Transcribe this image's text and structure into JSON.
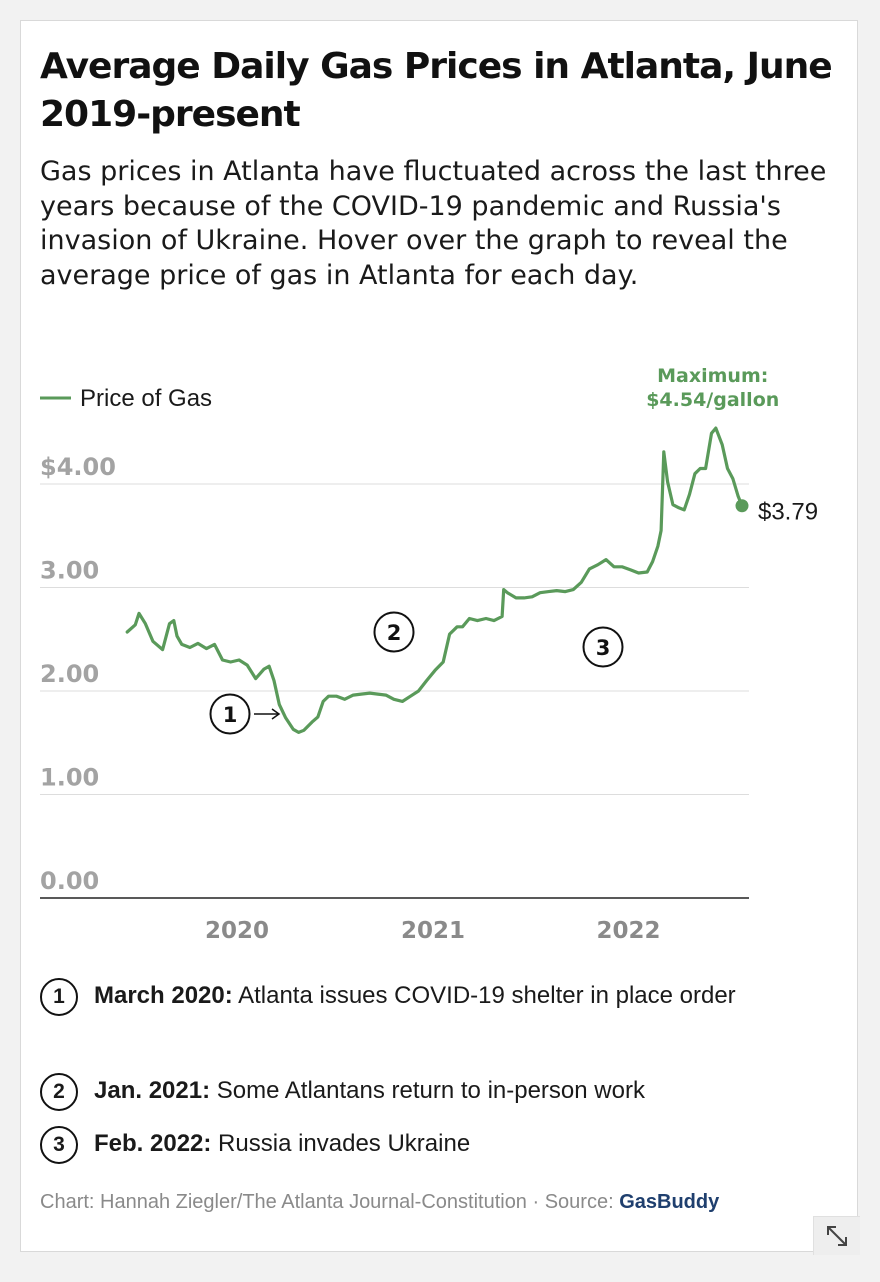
{
  "header": {
    "title": "Average Daily Gas Prices in Atlanta, June 2019-present",
    "subtitle": "Gas prices in Atlanta have fluctuated across the last three years because of the COVID-19 pandemic and Russia's invasion of Ukraine. Hover over the graph to reveal the average price of gas in Atlanta for each day."
  },
  "chart_data": {
    "type": "line",
    "legend": [
      "Price of Gas"
    ],
    "legend_placement": "top-left",
    "series": [
      {
        "name": "Price of Gas",
        "color": "#5a9a5a",
        "x": [
          "2019-06-10",
          "2019-06-25",
          "2019-07-02",
          "2019-07-14",
          "2019-07-28",
          "2019-08-15",
          "2019-08-28",
          "2019-09-05",
          "2019-09-11",
          "2019-09-20",
          "2019-10-05",
          "2019-10-20",
          "2019-11-05",
          "2019-11-20",
          "2019-12-05",
          "2019-12-20",
          "2020-01-05",
          "2020-01-20",
          "2020-02-05",
          "2020-02-20",
          "2020-03-01",
          "2020-03-10",
          "2020-03-20",
          "2020-04-01",
          "2020-04-15",
          "2020-04-25",
          "2020-05-05",
          "2020-05-20",
          "2020-05-31",
          "2020-06-10",
          "2020-06-20",
          "2020-07-05",
          "2020-07-20",
          "2020-08-05",
          "2020-08-20",
          "2020-09-05",
          "2020-09-20",
          "2020-10-05",
          "2020-10-20",
          "2020-11-05",
          "2020-11-20",
          "2020-12-05",
          "2020-12-20",
          "2021-01-05",
          "2021-01-20",
          "2021-02-01",
          "2021-02-15",
          "2021-02-25",
          "2021-03-10",
          "2021-03-25",
          "2021-04-10",
          "2021-04-25",
          "2021-05-10",
          "2021-05-13",
          "2021-05-20",
          "2021-06-05",
          "2021-06-20",
          "2021-07-05",
          "2021-07-20",
          "2021-08-05",
          "2021-08-20",
          "2021-09-05",
          "2021-09-20",
          "2021-10-05",
          "2021-10-20",
          "2021-11-05",
          "2021-11-20",
          "2021-12-05",
          "2021-12-20",
          "2022-01-05",
          "2022-01-20",
          "2022-02-05",
          "2022-02-15",
          "2022-02-25",
          "2022-03-03",
          "2022-03-08",
          "2022-03-15",
          "2022-03-25",
          "2022-04-05",
          "2022-04-15",
          "2022-04-25",
          "2022-05-05",
          "2022-05-15",
          "2022-05-25",
          "2022-06-05",
          "2022-06-13",
          "2022-06-25",
          "2022-07-05",
          "2022-07-15",
          "2022-07-25",
          "2022-08-01"
        ],
        "values": [
          2.57,
          2.64,
          2.75,
          2.65,
          2.48,
          2.4,
          2.65,
          2.68,
          2.53,
          2.45,
          2.42,
          2.46,
          2.41,
          2.45,
          2.3,
          2.28,
          2.3,
          2.25,
          2.12,
          2.21,
          2.24,
          2.1,
          1.87,
          1.74,
          1.63,
          1.6,
          1.62,
          1.7,
          1.75,
          1.9,
          1.95,
          1.95,
          1.92,
          1.96,
          1.97,
          1.98,
          1.97,
          1.96,
          1.92,
          1.9,
          1.95,
          2.0,
          2.1,
          2.2,
          2.28,
          2.55,
          2.62,
          2.62,
          2.7,
          2.68,
          2.7,
          2.68,
          2.72,
          2.98,
          2.95,
          2.9,
          2.9,
          2.91,
          2.95,
          2.96,
          2.97,
          2.96,
          2.98,
          3.05,
          3.18,
          3.22,
          3.27,
          3.2,
          3.2,
          3.17,
          3.14,
          3.15,
          3.25,
          3.4,
          3.55,
          4.31,
          4.02,
          3.8,
          3.77,
          3.75,
          3.9,
          4.1,
          4.15,
          4.15,
          4.49,
          4.54,
          4.38,
          4.15,
          4.05,
          3.88,
          3.79
        ]
      }
    ],
    "x_ticks": [
      "2020",
      "2021",
      "2022"
    ],
    "y_ticks": [
      "0.00",
      "1.00",
      "2.00",
      "3.00",
      "$4.00"
    ],
    "ylim": [
      0,
      4.8
    ],
    "grid": "horizontal",
    "annotations": [
      {
        "label": "1",
        "text": "March 2020: Atlanta issues COVID-19 shelter in place order",
        "date": "2020-03-01",
        "marker": "arrow"
      },
      {
        "label": "2",
        "text": "Jan. 2021: Some Atlantans return to in-person work",
        "date": "2021-01-01"
      },
      {
        "label": "3",
        "text": "Feb. 2022: Russia invades Ukraine",
        "date": "2022-02-24"
      }
    ],
    "max_label": [
      "Maximum:",
      "$4.54/gallon"
    ],
    "last_value_label": "$3.79"
  },
  "notes": [
    {
      "num": "1",
      "head": "March 2020:",
      "body": " Atlanta issues COVID-19 shelter in place order"
    },
    {
      "num": "2",
      "head": "Jan. 2021:",
      "body": " Some Atlantans return to in-person work"
    },
    {
      "num": "3",
      "head": "Feb. 2022:",
      "body": " Russia invades Ukraine"
    }
  ],
  "credit": {
    "text": "Chart: Hannah Ziegler/The Atlanta Journal-Constitution · Source: ",
    "source": "GasBuddy"
  },
  "icons": {
    "expand": "expand-arrows-icon"
  },
  "colors": {
    "line": "#5a9a5a",
    "axis_label": "#999999",
    "grid": "#dddddd",
    "source_link": "#1f3f6e"
  }
}
